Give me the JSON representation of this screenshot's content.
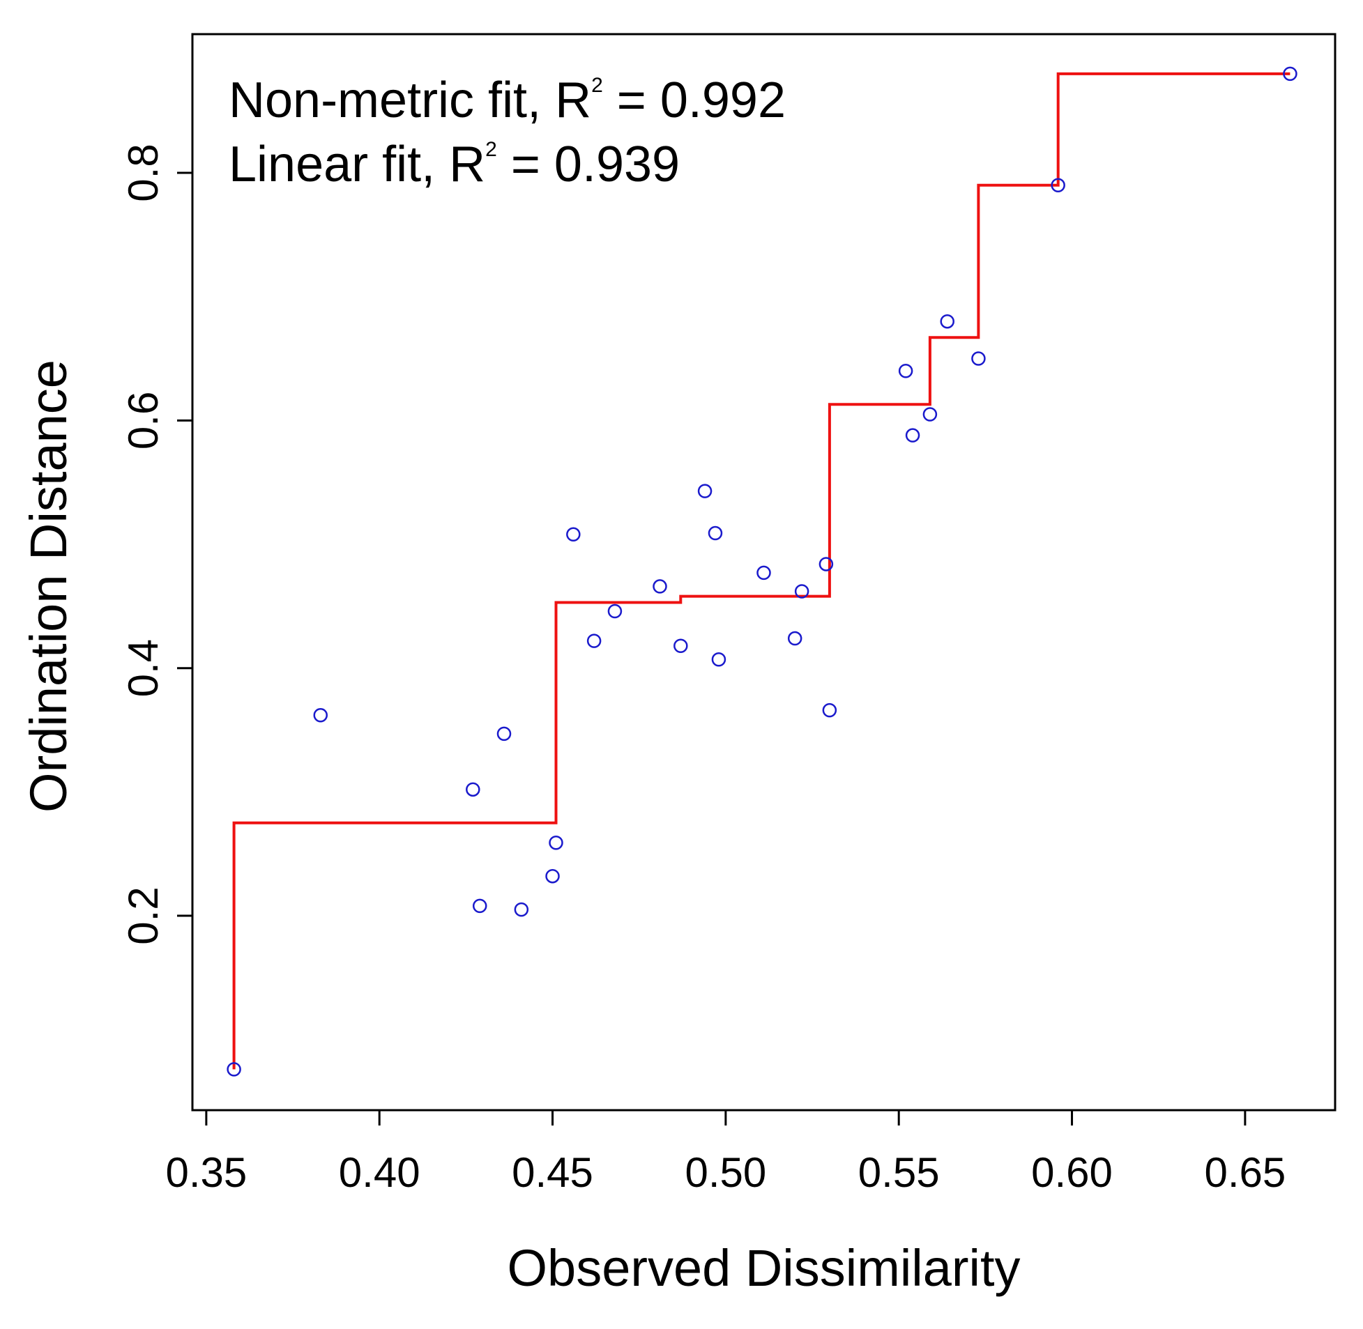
{
  "chart_data": {
    "type": "scatter",
    "title": "",
    "xlabel": "Observed Dissimilarity",
    "ylabel": "Ordination Distance",
    "xlim": [
      0.346,
      0.676
    ],
    "ylim": [
      0.043,
      0.912
    ],
    "x_ticks": [
      0.35,
      0.4,
      0.45,
      0.5,
      0.55,
      0.6,
      0.65
    ],
    "x_tick_labels": [
      "0.35",
      "0.40",
      "0.45",
      "0.50",
      "0.55",
      "0.60",
      "0.65"
    ],
    "y_ticks": [
      0.2,
      0.4,
      0.6,
      0.8
    ],
    "y_tick_labels": [
      "0.2",
      "0.4",
      "0.6",
      "0.8"
    ],
    "annotations": {
      "line1": {
        "prefix": "Non-metric fit, R",
        "sup": "2",
        "suffix": " = 0.992"
      },
      "line2": {
        "prefix": "Linear fit, R",
        "sup": "2",
        "suffix": " = 0.939"
      }
    },
    "series": [
      {
        "name": "points",
        "kind": "scatter",
        "color": "#1a1acc",
        "points": [
          {
            "x": 0.358,
            "y": 0.076
          },
          {
            "x": 0.383,
            "y": 0.362
          },
          {
            "x": 0.427,
            "y": 0.302
          },
          {
            "x": 0.429,
            "y": 0.208
          },
          {
            "x": 0.436,
            "y": 0.347
          },
          {
            "x": 0.441,
            "y": 0.205
          },
          {
            "x": 0.45,
            "y": 0.232
          },
          {
            "x": 0.451,
            "y": 0.259
          },
          {
            "x": 0.456,
            "y": 0.508
          },
          {
            "x": 0.462,
            "y": 0.422
          },
          {
            "x": 0.468,
            "y": 0.446
          },
          {
            "x": 0.481,
            "y": 0.466
          },
          {
            "x": 0.487,
            "y": 0.418
          },
          {
            "x": 0.494,
            "y": 0.543
          },
          {
            "x": 0.497,
            "y": 0.509
          },
          {
            "x": 0.498,
            "y": 0.407
          },
          {
            "x": 0.511,
            "y": 0.477
          },
          {
            "x": 0.52,
            "y": 0.424
          },
          {
            "x": 0.522,
            "y": 0.462
          },
          {
            "x": 0.529,
            "y": 0.484
          },
          {
            "x": 0.53,
            "y": 0.366
          },
          {
            "x": 0.552,
            "y": 0.64
          },
          {
            "x": 0.554,
            "y": 0.588
          },
          {
            "x": 0.559,
            "y": 0.605
          },
          {
            "x": 0.564,
            "y": 0.68
          },
          {
            "x": 0.573,
            "y": 0.65
          },
          {
            "x": 0.596,
            "y": 0.79
          },
          {
            "x": 0.663,
            "y": 0.88
          }
        ]
      },
      {
        "name": "non-metric step fit",
        "kind": "step",
        "color": "#ee1111",
        "points": [
          {
            "x": 0.358,
            "y": 0.076
          },
          {
            "x": 0.358,
            "y": 0.275
          },
          {
            "x": 0.451,
            "y": 0.275
          },
          {
            "x": 0.451,
            "y": 0.453
          },
          {
            "x": 0.487,
            "y": 0.453
          },
          {
            "x": 0.487,
            "y": 0.458
          },
          {
            "x": 0.53,
            "y": 0.458
          },
          {
            "x": 0.53,
            "y": 0.613
          },
          {
            "x": 0.559,
            "y": 0.613
          },
          {
            "x": 0.559,
            "y": 0.667
          },
          {
            "x": 0.573,
            "y": 0.667
          },
          {
            "x": 0.573,
            "y": 0.79
          },
          {
            "x": 0.596,
            "y": 0.79
          },
          {
            "x": 0.596,
            "y": 0.88
          },
          {
            "x": 0.663,
            "y": 0.88
          }
        ]
      }
    ]
  }
}
